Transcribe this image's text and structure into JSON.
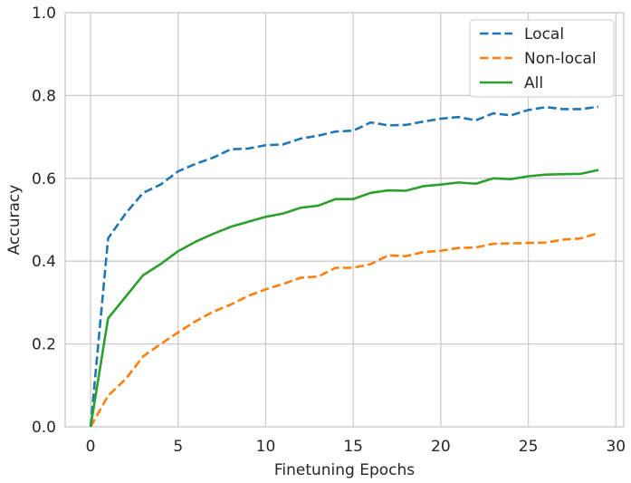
{
  "chart_data": {
    "type": "line",
    "title": "",
    "xlabel": "Finetuning Epochs",
    "ylabel": "Accuracy",
    "xlim": [
      -1.45,
      30.45
    ],
    "ylim": [
      0.0,
      1.0
    ],
    "xticks": [
      0,
      5,
      10,
      15,
      20,
      25,
      30
    ],
    "yticks": [
      0.0,
      0.2,
      0.4,
      0.6,
      0.8,
      1.0
    ],
    "xtick_labels": [
      "0",
      "5",
      "10",
      "15",
      "20",
      "25",
      "30"
    ],
    "ytick_labels": [
      "0.0",
      "0.2",
      "0.4",
      "0.6",
      "0.8",
      "1.0"
    ],
    "grid": true,
    "legend_position": "top-right",
    "x": [
      0,
      1,
      2,
      3,
      4,
      5,
      6,
      7,
      8,
      9,
      10,
      11,
      12,
      13,
      14,
      15,
      16,
      17,
      18,
      19,
      20,
      21,
      22,
      23,
      24,
      25,
      26,
      27,
      28,
      29
    ],
    "series": [
      {
        "name": "Local",
        "color": "#1f77b4",
        "style": "dashed",
        "values": [
          0.0,
          0.455,
          0.515,
          0.565,
          0.585,
          0.617,
          0.635,
          0.65,
          0.67,
          0.672,
          0.68,
          0.682,
          0.696,
          0.703,
          0.713,
          0.715,
          0.735,
          0.728,
          0.729,
          0.737,
          0.744,
          0.748,
          0.74,
          0.757,
          0.752,
          0.765,
          0.772,
          0.767,
          0.767,
          0.773
        ]
      },
      {
        "name": "Non-local",
        "color": "#ff7f0e",
        "style": "dashed",
        "values": [
          0.0,
          0.075,
          0.115,
          0.17,
          0.2,
          0.228,
          0.255,
          0.278,
          0.295,
          0.316,
          0.332,
          0.345,
          0.36,
          0.363,
          0.384,
          0.384,
          0.393,
          0.414,
          0.412,
          0.422,
          0.425,
          0.432,
          0.433,
          0.442,
          0.443,
          0.444,
          0.445,
          0.452,
          0.455,
          0.468
        ]
      },
      {
        "name": "All",
        "color": "#2ca02c",
        "style": "solid",
        "values": [
          0.0,
          0.262,
          0.314,
          0.366,
          0.393,
          0.424,
          0.447,
          0.466,
          0.483,
          0.495,
          0.507,
          0.515,
          0.529,
          0.534,
          0.55,
          0.55,
          0.565,
          0.571,
          0.57,
          0.581,
          0.585,
          0.59,
          0.587,
          0.6,
          0.598,
          0.605,
          0.609,
          0.61,
          0.611,
          0.62
        ]
      }
    ]
  }
}
